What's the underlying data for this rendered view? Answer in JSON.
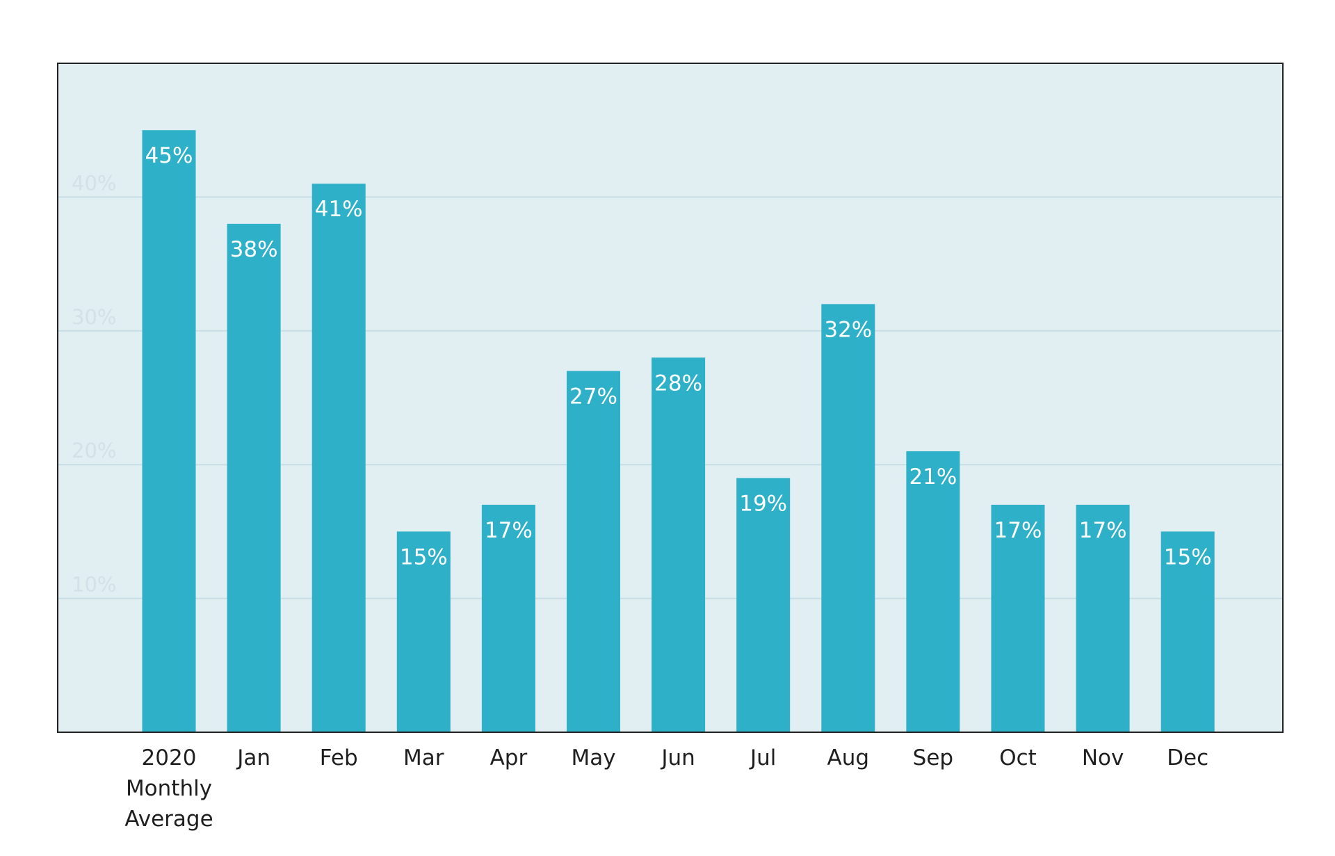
{
  "chart_data": {
    "type": "bar",
    "categories": [
      [
        "2020",
        "Monthly",
        "Average"
      ],
      [
        "Jan"
      ],
      [
        "Feb"
      ],
      [
        "Mar"
      ],
      [
        "Apr"
      ],
      [
        "May"
      ],
      [
        "Jun"
      ],
      [
        "Jul"
      ],
      [
        "Aug"
      ],
      [
        "Sep"
      ],
      [
        "Oct"
      ],
      [
        "Nov"
      ],
      [
        "Dec"
      ]
    ],
    "values": [
      45,
      38,
      41,
      15,
      17,
      27,
      28,
      19,
      32,
      21,
      17,
      17,
      15
    ],
    "data_labels": [
      "45%",
      "38%",
      "41%",
      "15%",
      "17%",
      "27%",
      "28%",
      "19%",
      "32%",
      "21%",
      "17%",
      "17%",
      "15%"
    ],
    "title": "",
    "xlabel": "",
    "ylabel": "",
    "ylim": [
      0,
      50
    ],
    "yticks": [
      10,
      20,
      30,
      40
    ],
    "ytick_labels": [
      "10%",
      "20%",
      "30%",
      "40%"
    ],
    "grid": true,
    "legend": "none"
  },
  "colors": {
    "bar": "#2db0c8",
    "plot_background": "#e1eef2",
    "gridline": "#c9dde4",
    "frame": "#222222",
    "tick_label": "#d2e2e8",
    "category_label": "#1f1f1f",
    "data_label": "#ffffff"
  }
}
